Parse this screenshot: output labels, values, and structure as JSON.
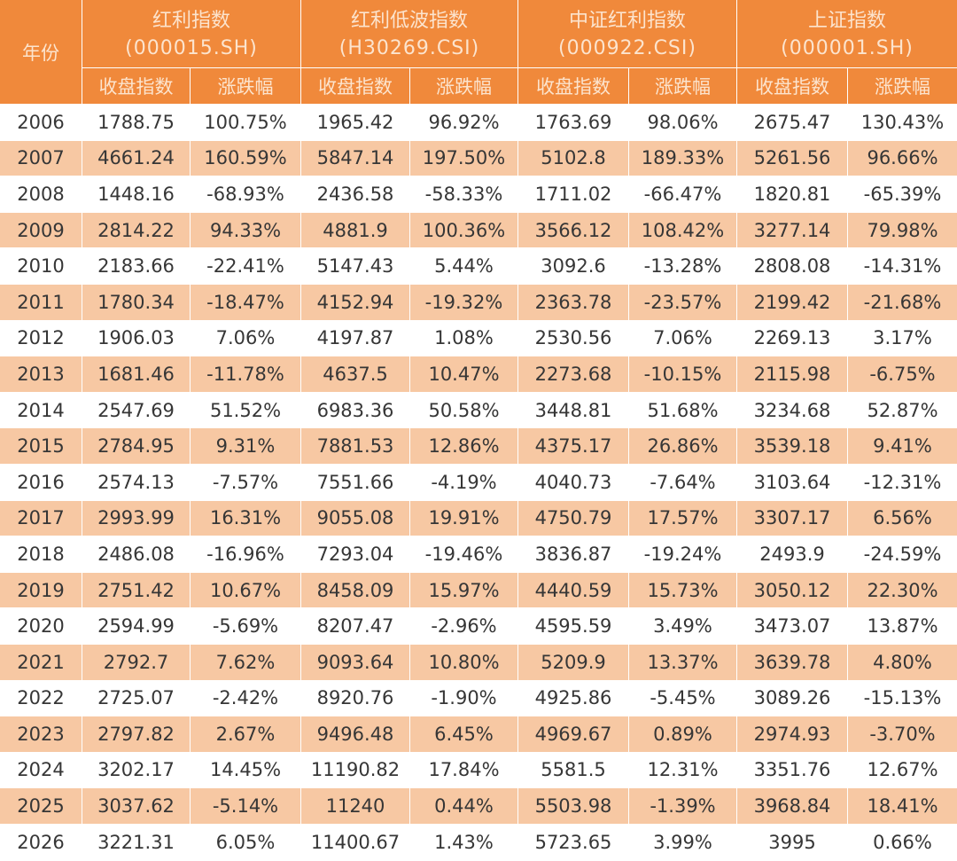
{
  "table": {
    "year_header": "年份",
    "groups": [
      {
        "name": "红利指数",
        "code": "(000015.SH)"
      },
      {
        "name": "红利低波指数",
        "code": "(H30269.CSI)"
      },
      {
        "name": "中证红利指数",
        "code": "(000922.CSI)"
      },
      {
        "name": "上证指数",
        "code": "(000001.SH)"
      }
    ],
    "sub_headers": [
      "收盘指数",
      "涨跌幅",
      "收盘指数",
      "涨跌幅",
      "收盘指数",
      "涨跌幅",
      "收盘指数",
      "涨跌幅"
    ],
    "rows": [
      {
        "year": "2006",
        "cells": [
          "1788.75",
          "100.75%",
          "1965.42",
          "96.92%",
          "1763.69",
          "98.06%",
          "2675.47",
          "130.43%"
        ]
      },
      {
        "year": "2007",
        "cells": [
          "4661.24",
          "160.59%",
          "5847.14",
          "197.50%",
          "5102.8",
          "189.33%",
          "5261.56",
          "96.66%"
        ]
      },
      {
        "year": "2008",
        "cells": [
          "1448.16",
          "-68.93%",
          "2436.58",
          "-58.33%",
          "1711.02",
          "-66.47%",
          "1820.81",
          "-65.39%"
        ]
      },
      {
        "year": "2009",
        "cells": [
          "2814.22",
          "94.33%",
          "4881.9",
          "100.36%",
          "3566.12",
          "108.42%",
          "3277.14",
          "79.98%"
        ]
      },
      {
        "year": "2010",
        "cells": [
          "2183.66",
          "-22.41%",
          "5147.43",
          "5.44%",
          "3092.6",
          "-13.28%",
          "2808.08",
          "-14.31%"
        ]
      },
      {
        "year": "2011",
        "cells": [
          "1780.34",
          "-18.47%",
          "4152.94",
          "-19.32%",
          "2363.78",
          "-23.57%",
          "2199.42",
          "-21.68%"
        ]
      },
      {
        "year": "2012",
        "cells": [
          "1906.03",
          "7.06%",
          "4197.87",
          "1.08%",
          "2530.56",
          "7.06%",
          "2269.13",
          "3.17%"
        ]
      },
      {
        "year": "2013",
        "cells": [
          "1681.46",
          "-11.78%",
          "4637.5",
          "10.47%",
          "2273.68",
          "-10.15%",
          "2115.98",
          "-6.75%"
        ]
      },
      {
        "year": "2014",
        "cells": [
          "2547.69",
          "51.52%",
          "6983.36",
          "50.58%",
          "3448.81",
          "51.68%",
          "3234.68",
          "52.87%"
        ]
      },
      {
        "year": "2015",
        "cells": [
          "2784.95",
          "9.31%",
          "7881.53",
          "12.86%",
          "4375.17",
          "26.86%",
          "3539.18",
          "9.41%"
        ]
      },
      {
        "year": "2016",
        "cells": [
          "2574.13",
          "-7.57%",
          "7551.66",
          "-4.19%",
          "4040.73",
          "-7.64%",
          "3103.64",
          "-12.31%"
        ]
      },
      {
        "year": "2017",
        "cells": [
          "2993.99",
          "16.31%",
          "9055.08",
          "19.91%",
          "4750.79",
          "17.57%",
          "3307.17",
          "6.56%"
        ]
      },
      {
        "year": "2018",
        "cells": [
          "2486.08",
          "-16.96%",
          "7293.04",
          "-19.46%",
          "3836.87",
          "-19.24%",
          "2493.9",
          "-24.59%"
        ]
      },
      {
        "year": "2019",
        "cells": [
          "2751.42",
          "10.67%",
          "8458.09",
          "15.97%",
          "4440.59",
          "15.73%",
          "3050.12",
          "22.30%"
        ]
      },
      {
        "year": "2020",
        "cells": [
          "2594.99",
          "-5.69%",
          "8207.47",
          "-2.96%",
          "4595.59",
          "3.49%",
          "3473.07",
          "13.87%"
        ]
      },
      {
        "year": "2021",
        "cells": [
          "2792.7",
          "7.62%",
          "9093.64",
          "10.80%",
          "5209.9",
          "13.37%",
          "3639.78",
          "4.80%"
        ]
      },
      {
        "year": "2022",
        "cells": [
          "2725.07",
          "-2.42%",
          "8920.76",
          "-1.90%",
          "4925.86",
          "-5.45%",
          "3089.26",
          "-15.13%"
        ]
      },
      {
        "year": "2023",
        "cells": [
          "2797.82",
          "2.67%",
          "9496.48",
          "6.45%",
          "4969.67",
          "0.89%",
          "2974.93",
          "-3.70%"
        ]
      },
      {
        "year": "2024",
        "cells": [
          "3202.17",
          "14.45%",
          "11190.82",
          "17.84%",
          "5581.5",
          "12.31%",
          "3351.76",
          "12.67%"
        ]
      },
      {
        "year": "2025",
        "cells": [
          "3037.62",
          "-5.14%",
          "11240",
          "0.44%",
          "5503.98",
          "-1.39%",
          "3968.84",
          "18.41%"
        ]
      },
      {
        "year": "2026",
        "cells": [
          "3221.31",
          "6.05%",
          "11400.67",
          "1.43%",
          "5723.65",
          "3.99%",
          "3995",
          "0.66%"
        ]
      }
    ]
  },
  "colors": {
    "header_bg": "#F0893B",
    "header_text": "#FCE4CE",
    "row_alt_bg": "#F7C8A3",
    "row_bg": "#FFFFFF",
    "cell_text": "#363636"
  }
}
